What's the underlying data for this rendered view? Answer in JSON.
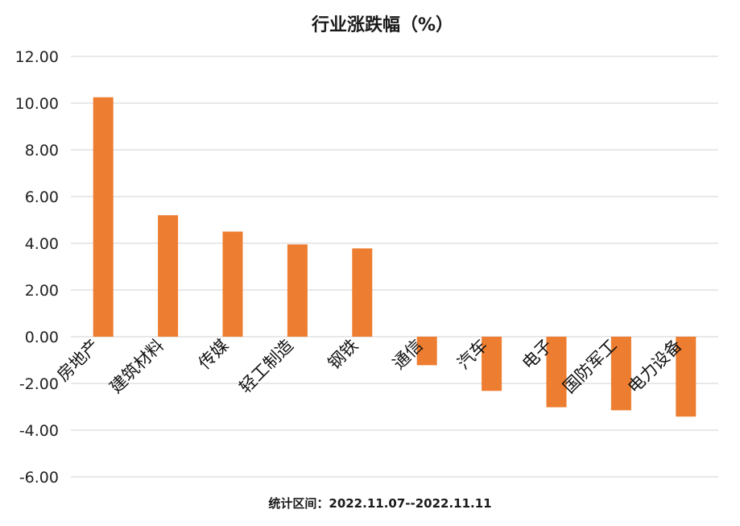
{
  "chart_data": {
    "type": "bar",
    "title": "行业涨跌幅（%）",
    "categories": [
      "房地产",
      "建筑材料",
      "传媒",
      "轻工制造",
      "钢铁",
      "通信",
      "汽车",
      "电子",
      "国防军工",
      "电力设备"
    ],
    "values": [
      10.25,
      5.2,
      4.5,
      3.95,
      3.78,
      -1.22,
      -2.32,
      -3.02,
      -3.15,
      -3.42
    ],
    "ylim": [
      -6,
      12
    ],
    "yticks": [
      "12.00",
      "10.00",
      "8.00",
      "6.00",
      "4.00",
      "2.00",
      "0.00",
      "-2.00",
      "-4.00",
      "-6.00"
    ],
    "xlabel": "",
    "ylabel": "",
    "grid": true,
    "bar_color": "#ED7D31",
    "footnote": "统计区间：2022.11.07--2022.11.11"
  }
}
